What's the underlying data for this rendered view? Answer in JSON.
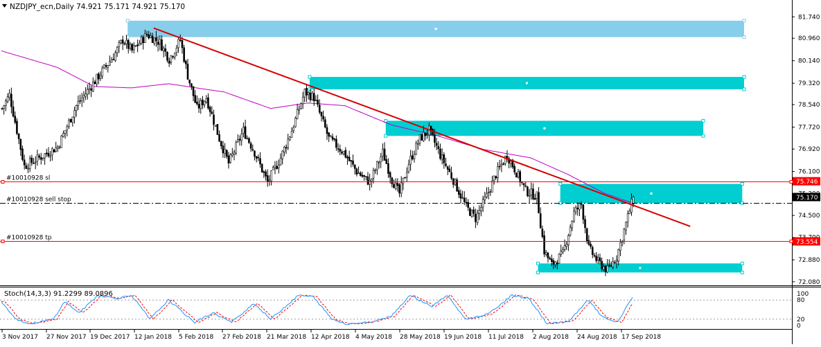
{
  "header": {
    "symbol_line": "NZDJPY_ecn,Daily  74.921 75.171 74.921 75.170"
  },
  "oscillator": {
    "label": "Stoch(14,3,3) 91.2299 89.0896",
    "levels": [
      "100",
      "80",
      "20",
      "0"
    ]
  },
  "colors": {
    "background": "#ffffff",
    "candle": "#000000",
    "zone": "#00ced1",
    "zone_top": "#87ceeb",
    "trendline": "#d40000",
    "moving_average": "#c000c0",
    "order_line": "#ff0000",
    "stoch_main": "#1e90ff",
    "stoch_signal": "#ff0000"
  },
  "chart_data": {
    "type": "candlestick",
    "title": "NZDJPY_ecn,Daily",
    "ohlc_last": {
      "open": 74.921,
      "high": 75.171,
      "low": 74.921,
      "close": 75.17
    },
    "y_ticks": [
      "81.740",
      "80.960",
      "80.140",
      "79.320",
      "78.540",
      "77.720",
      "76.920",
      "76.100",
      "75.300",
      "74.500",
      "73.700",
      "72.880",
      "72.080"
    ],
    "ylim": [
      71.95,
      81.95
    ],
    "x_ticks": [
      "3 Nov 2017",
      "27 Nov 2017",
      "19 Dec 2017",
      "12 Jan 2018",
      "5 Feb 2018",
      "27 Feb 2018",
      "21 Mar 2018",
      "12 Apr 2018",
      "4 May 2018",
      "28 May 2018",
      "19 Jun 2018",
      "11 Jul 2018",
      "2 Aug 2018",
      "24 Aug 2018",
      "17 Sep 2018"
    ],
    "price_labels": [
      {
        "text": "75.746",
        "value": 75.746,
        "style": "red"
      },
      {
        "text": "75.170",
        "value": 75.17,
        "style": "black"
      },
      {
        "text": "73.554",
        "value": 73.554,
        "style": "red"
      }
    ],
    "order_lines": [
      {
        "label": "#10010928 sl",
        "value": 75.746,
        "style": "solid"
      },
      {
        "label": "#10010928 sell stop",
        "value": 74.95,
        "style": "dashdot"
      },
      {
        "label": "#10010928 tp",
        "value": 73.554,
        "style": "solid"
      }
    ],
    "zones": [
      {
        "from_bar": 68,
        "to_bar": 400,
        "low": 81.0,
        "high": 81.6,
        "color": "light"
      },
      {
        "from_bar": 166,
        "to_bar": 400,
        "low": 79.1,
        "high": 79.55,
        "color": "cyan"
      },
      {
        "from_bar": 207,
        "to_bar": 378,
        "low": 77.4,
        "high": 77.95,
        "color": "cyan"
      },
      {
        "from_bar": 301,
        "to_bar": 399,
        "low": 74.95,
        "high": 75.65,
        "color": "cyan"
      },
      {
        "from_bar": 289,
        "to_bar": 399,
        "low": 72.42,
        "high": 72.75,
        "color": "cyan"
      }
    ],
    "trendline": {
      "from_bar": 82,
      "from_value": 81.33,
      "to_bar": 371,
      "to_value": 74.1
    },
    "anchors": [
      {
        "bar": 0,
        "value": 78.4
      },
      {
        "bar": 4,
        "value": 78.9
      },
      {
        "bar": 12,
        "value": 76.3
      },
      {
        "bar": 20,
        "value": 76.6
      },
      {
        "bar": 30,
        "value": 77.0
      },
      {
        "bar": 40,
        "value": 78.5
      },
      {
        "bar": 50,
        "value": 79.4
      },
      {
        "bar": 60,
        "value": 80.3
      },
      {
        "bar": 65,
        "value": 80.9
      },
      {
        "bar": 70,
        "value": 80.5
      },
      {
        "bar": 78,
        "value": 81.1
      },
      {
        "bar": 85,
        "value": 80.8
      },
      {
        "bar": 90,
        "value": 80.2
      },
      {
        "bar": 96,
        "value": 80.9
      },
      {
        "bar": 100,
        "value": 79.6
      },
      {
        "bar": 105,
        "value": 78.4
      },
      {
        "bar": 110,
        "value": 78.8
      },
      {
        "bar": 117,
        "value": 77.3
      },
      {
        "bar": 122,
        "value": 76.4
      },
      {
        "bar": 130,
        "value": 77.6
      },
      {
        "bar": 136,
        "value": 76.8
      },
      {
        "bar": 143,
        "value": 75.7
      },
      {
        "bar": 150,
        "value": 76.6
      },
      {
        "bar": 156,
        "value": 77.6
      },
      {
        "bar": 163,
        "value": 79.0
      },
      {
        "bar": 168,
        "value": 78.8
      },
      {
        "bar": 176,
        "value": 77.3
      },
      {
        "bar": 184,
        "value": 76.8
      },
      {
        "bar": 191,
        "value": 76.1
      },
      {
        "bar": 198,
        "value": 75.7
      },
      {
        "bar": 205,
        "value": 76.8
      },
      {
        "bar": 210,
        "value": 75.8
      },
      {
        "bar": 214,
        "value": 75.3
      },
      {
        "bar": 219,
        "value": 76.4
      },
      {
        "bar": 225,
        "value": 77.3
      },
      {
        "bar": 230,
        "value": 77.6
      },
      {
        "bar": 236,
        "value": 76.7
      },
      {
        "bar": 243,
        "value": 75.8
      },
      {
        "bar": 250,
        "value": 74.8
      },
      {
        "bar": 255,
        "value": 74.4
      },
      {
        "bar": 261,
        "value": 75.2
      },
      {
        "bar": 266,
        "value": 76.0
      },
      {
        "bar": 272,
        "value": 76.7
      },
      {
        "bar": 276,
        "value": 76.2
      },
      {
        "bar": 282,
        "value": 75.4
      },
      {
        "bar": 288,
        "value": 75.2
      },
      {
        "bar": 292,
        "value": 73.2
      },
      {
        "bar": 296,
        "value": 72.7
      },
      {
        "bar": 302,
        "value": 73.1
      },
      {
        "bar": 308,
        "value": 74.6
      },
      {
        "bar": 312,
        "value": 74.9
      },
      {
        "bar": 316,
        "value": 73.3
      },
      {
        "bar": 321,
        "value": 72.8
      },
      {
        "bar": 326,
        "value": 72.5
      },
      {
        "bar": 331,
        "value": 73.0
      },
      {
        "bar": 336,
        "value": 74.2
      },
      {
        "bar": 340,
        "value": 75.17
      }
    ],
    "ma_anchors": [
      {
        "bar": 0,
        "value": 80.5
      },
      {
        "bar": 30,
        "value": 79.9
      },
      {
        "bar": 50,
        "value": 79.2
      },
      {
        "bar": 70,
        "value": 79.15
      },
      {
        "bar": 90,
        "value": 79.3
      },
      {
        "bar": 120,
        "value": 79.0
      },
      {
        "bar": 145,
        "value": 78.4
      },
      {
        "bar": 165,
        "value": 78.6
      },
      {
        "bar": 185,
        "value": 78.5
      },
      {
        "bar": 210,
        "value": 77.8
      },
      {
        "bar": 235,
        "value": 77.4
      },
      {
        "bar": 260,
        "value": 76.9
      },
      {
        "bar": 285,
        "value": 76.6
      },
      {
        "bar": 305,
        "value": 76.0
      },
      {
        "bar": 325,
        "value": 75.3
      },
      {
        "bar": 340,
        "value": 74.95
      }
    ],
    "stochastic": {
      "name": "Stoch(14,3,3)",
      "main_last": 91.2299,
      "signal_last": 89.0896,
      "levels": [
        80,
        20
      ],
      "ylim": [
        0,
        100
      ],
      "anchors": [
        {
          "bar": 0,
          "value": 75
        },
        {
          "bar": 8,
          "value": 20
        },
        {
          "bar": 15,
          "value": 5
        },
        {
          "bar": 28,
          "value": 20
        },
        {
          "bar": 34,
          "value": 75
        },
        {
          "bar": 42,
          "value": 40
        },
        {
          "bar": 52,
          "value": 95
        },
        {
          "bar": 62,
          "value": 85
        },
        {
          "bar": 70,
          "value": 95
        },
        {
          "bar": 80,
          "value": 20
        },
        {
          "bar": 90,
          "value": 80
        },
        {
          "bar": 104,
          "value": 10
        },
        {
          "bar": 114,
          "value": 40
        },
        {
          "bar": 124,
          "value": 10
        },
        {
          "bar": 136,
          "value": 70
        },
        {
          "bar": 145,
          "value": 20
        },
        {
          "bar": 160,
          "value": 95
        },
        {
          "bar": 168,
          "value": 90
        },
        {
          "bar": 178,
          "value": 20
        },
        {
          "bar": 186,
          "value": 5
        },
        {
          "bar": 198,
          "value": 10
        },
        {
          "bar": 210,
          "value": 30
        },
        {
          "bar": 220,
          "value": 95
        },
        {
          "bar": 232,
          "value": 60
        },
        {
          "bar": 240,
          "value": 95
        },
        {
          "bar": 250,
          "value": 20
        },
        {
          "bar": 262,
          "value": 35
        },
        {
          "bar": 275,
          "value": 95
        },
        {
          "bar": 284,
          "value": 85
        },
        {
          "bar": 294,
          "value": 5
        },
        {
          "bar": 306,
          "value": 15
        },
        {
          "bar": 316,
          "value": 80
        },
        {
          "bar": 324,
          "value": 25
        },
        {
          "bar": 332,
          "value": 10
        },
        {
          "bar": 340,
          "value": 91
        }
      ]
    }
  }
}
